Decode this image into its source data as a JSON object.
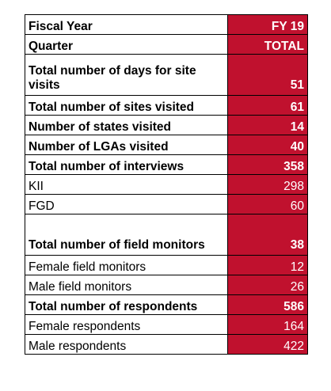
{
  "table": {
    "rows": [
      {
        "label": "Fiscal Year",
        "value": "FY 19",
        "bold": true
      },
      {
        "label": "Quarter",
        "value": "TOTAL",
        "bold": true
      },
      {
        "label": "Total number of days for site visits",
        "value": "51",
        "bold": true
      },
      {
        "label": "Total number of sites visited",
        "value": "61",
        "bold": true
      },
      {
        "label": "Number of states visited",
        "value": "14",
        "bold": true
      },
      {
        "label": "Number of LGAs visited",
        "value": "40",
        "bold": true
      },
      {
        "label": "Total number of interviews",
        "value": "358",
        "bold": true
      },
      {
        "label": "KII",
        "value": "298",
        "bold": false
      },
      {
        "label": "FGD",
        "value": "60",
        "bold": false
      },
      {
        "label": "Total number of field monitors",
        "value": "38",
        "bold": true
      },
      {
        "label": "Female field monitors",
        "value": "12",
        "bold": false
      },
      {
        "label": "Male field monitors",
        "value": "26",
        "bold": false
      },
      {
        "label": "Total number of respondents",
        "value": "586",
        "bold": true
      },
      {
        "label": "Female respondents",
        "value": "164",
        "bold": false
      },
      {
        "label": "Male respondents",
        "value": "422",
        "bold": false
      }
    ]
  },
  "colors": {
    "value_fill": "#c0112e",
    "value_text": "#ffffff",
    "border": "#000000"
  }
}
